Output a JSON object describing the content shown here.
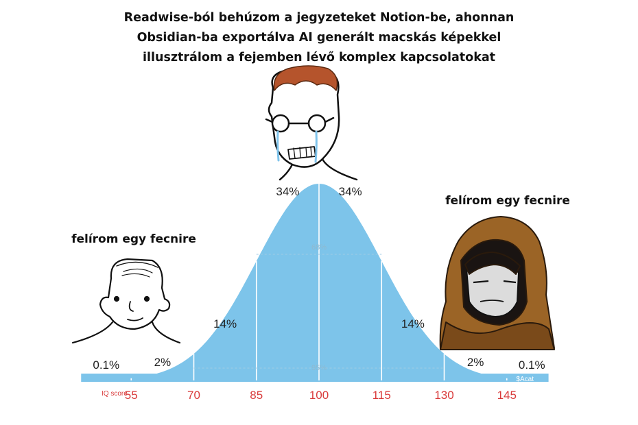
{
  "caption": {
    "lines": [
      "Readwise-ból behúzom a jegyzeteket Notion-be, ahonnan",
      "Obsidian-ba exportálva AI generált macskás képekkel",
      "illusztrálom a fejemben lévő komplex kapcsolatokat"
    ]
  },
  "left_label": "felírom egy fecnire",
  "right_label": "felírom egy fecnire",
  "chart_data": {
    "type": "area",
    "distribution": "normal",
    "mean": 100,
    "sd": 15,
    "xlabel": "IQ score",
    "x_ticks": [
      55,
      70,
      85,
      100,
      115,
      130,
      145
    ],
    "band_percents": [
      "0.1%",
      "2%",
      "14%",
      "34%",
      "34%",
      "14%",
      "2%",
      "0.1%"
    ],
    "range_labels": [
      "68%",
      "95%"
    ],
    "watermark": "$Acat",
    "colors": {
      "fill": "#7dc4ea",
      "tick_text": "#d93a3a",
      "band_text": "#222222",
      "range_text": "#8fb9d0"
    }
  },
  "characters": [
    {
      "name": "left-wojak-avatar",
      "hair": "#ffffff"
    },
    {
      "name": "middle-crying-wojak-avatar",
      "hair": "#b5542c"
    },
    {
      "name": "right-hooded-wojak-avatar",
      "hood": "#9b6426"
    }
  ]
}
